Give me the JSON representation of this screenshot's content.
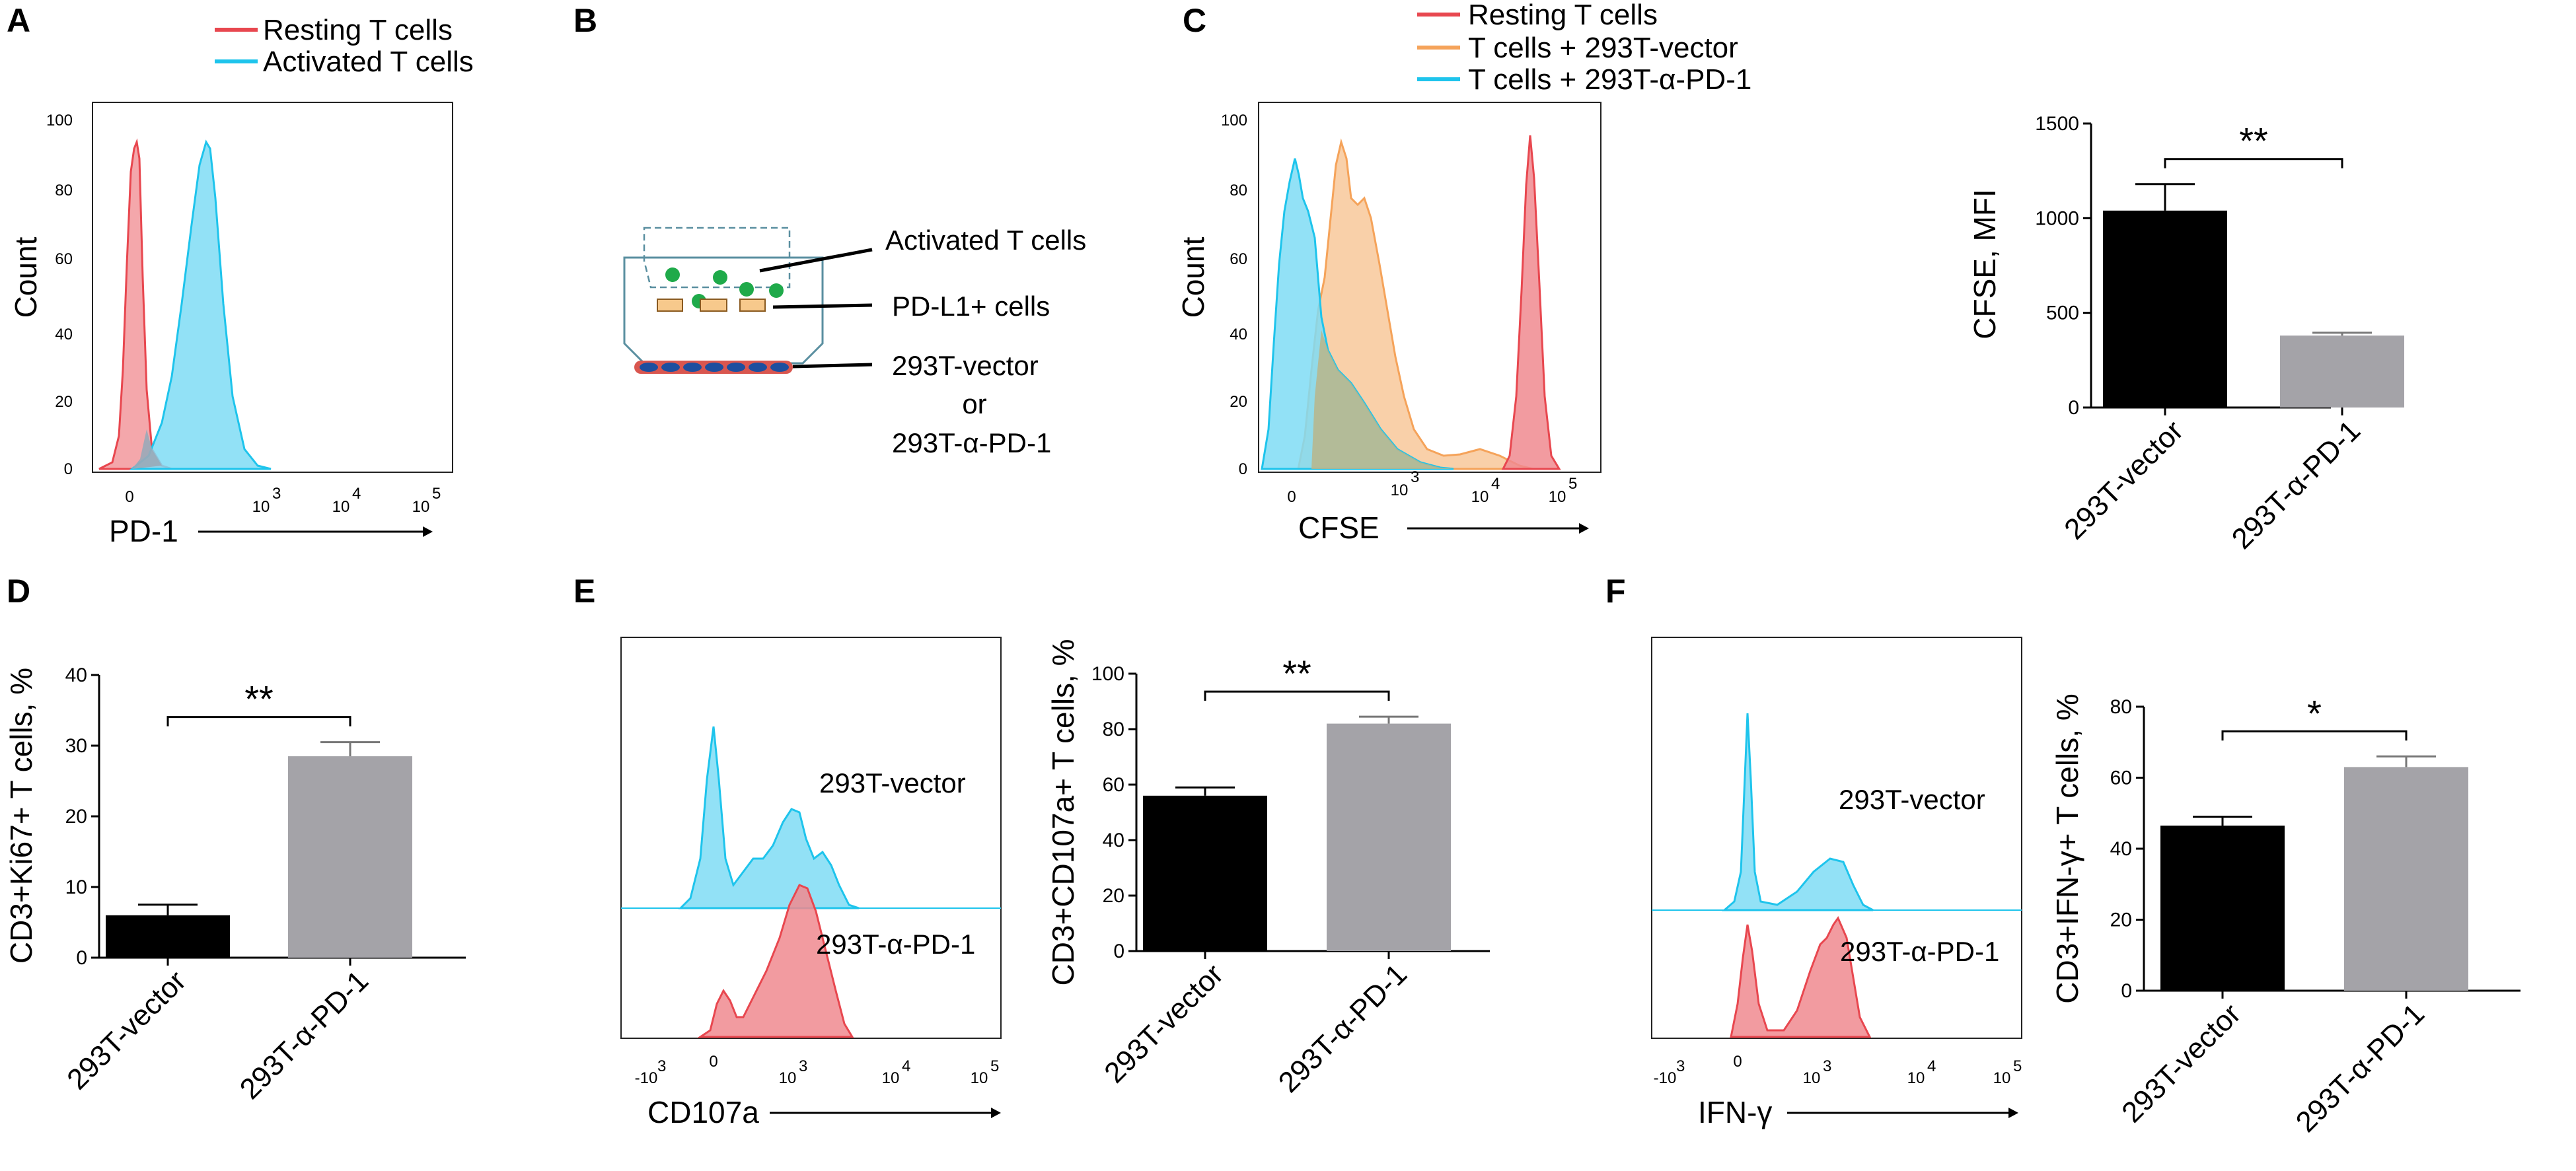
{
  "colors": {
    "red": "#e8474f",
    "red_fill": "#f08a8f",
    "cyan": "#1ec4ec",
    "cyan_fill": "#7fdcf4",
    "orange": "#f5a35a",
    "orange_fill": "#f8c89a",
    "olive": "#b9b58a",
    "black_bar": "#000000",
    "grey_bar": "#a4a3a8",
    "cell_green": "#1faa4a",
    "cell_orange": "#f7c98c",
    "cell_blue": "#1d4f9f"
  },
  "panels": {
    "A": "A",
    "B": "B",
    "C": "C",
    "D": "D",
    "E": "E",
    "F": "F"
  },
  "panelA": {
    "legend": [
      "Resting T cells",
      "Activated T cells"
    ],
    "ylabel": "Count",
    "xlabel": "PD-1",
    "yticks": [
      "0",
      "20",
      "40",
      "60",
      "80",
      "100"
    ],
    "xticks": [
      "0",
      "10",
      "10",
      "10"
    ],
    "xexp": [
      "",
      "3",
      "4",
      "5"
    ]
  },
  "panelB": {
    "labels": [
      "Activated T cells",
      "PD-L1+ cells",
      "293T-vector",
      "or",
      "293T-α-PD-1"
    ]
  },
  "panelC": {
    "legend": [
      "Resting T cells",
      "T cells + 293T-vector",
      "T cells + 293T-α-PD-1"
    ],
    "ylabel": "Count",
    "xlabel": "CFSE",
    "yticks": [
      "0",
      "20",
      "40",
      "60",
      "80",
      "100"
    ],
    "xticks": [
      "0",
      "10",
      "10",
      "10"
    ],
    "xexp": [
      "",
      "3",
      "4",
      "5"
    ]
  },
  "panelC_annot": {
    "sig": "**"
  },
  "panelD_annot": {
    "sig": "**"
  },
  "panelE_annot": {
    "sig": "**"
  },
  "panelF_annot": {
    "sig": "*"
  },
  "panelE": {
    "xlabel": "CD107a",
    "labels": [
      "293T-vector",
      "293T-α-PD-1"
    ],
    "xticks": [
      "-10",
      "0",
      "10",
      "10",
      "10"
    ],
    "xexp": [
      "3",
      "",
      "3",
      "4",
      "5"
    ]
  },
  "panelF": {
    "xlabel": "IFN-γ",
    "labels": [
      "293T-vector",
      "293T-α-PD-1"
    ],
    "xticks": [
      "-10",
      "0",
      "10",
      "10",
      "10"
    ],
    "xexp": [
      "3",
      "",
      "3",
      "4",
      "5"
    ]
  },
  "chart_data": [
    {
      "id": "C-bar",
      "type": "bar",
      "categories": [
        "293T-vector",
        "293T-α-PD-1"
      ],
      "values": [
        1040,
        380
      ],
      "errors": [
        140,
        15
      ],
      "ylabel": "CFSE, MFI",
      "ylim": [
        0,
        1500
      ],
      "yticks": [
        0,
        500,
        1000,
        1500
      ],
      "significance": "**"
    },
    {
      "id": "D-bar",
      "type": "bar",
      "categories": [
        "293T-vector",
        "293T-α-PD-1"
      ],
      "values": [
        6,
        28.5
      ],
      "errors": [
        1.5,
        2
      ],
      "ylabel": "CD3+Ki67+ T cells, %",
      "ylim": [
        0,
        40
      ],
      "yticks": [
        0,
        10,
        20,
        30,
        40
      ],
      "significance": "**"
    },
    {
      "id": "E-bar",
      "type": "bar",
      "categories": [
        "293T-vector",
        "293T-α-PD-1"
      ],
      "values": [
        56,
        82
      ],
      "errors": [
        3,
        2.5
      ],
      "ylabel": "CD3+CD107a+ T cells, %",
      "ylim": [
        0,
        100
      ],
      "yticks": [
        0,
        20,
        40,
        60,
        80,
        100
      ],
      "significance": "**"
    },
    {
      "id": "F-bar",
      "type": "bar",
      "categories": [
        "293T-vector",
        "293T-α-PD-1"
      ],
      "values": [
        46.5,
        63
      ],
      "errors": [
        2.5,
        3
      ],
      "ylabel": "CD3+IFN-γ+ T cells, %",
      "ylim": [
        0,
        80
      ],
      "yticks": [
        0,
        20,
        40,
        60,
        80
      ],
      "significance": "*"
    }
  ]
}
